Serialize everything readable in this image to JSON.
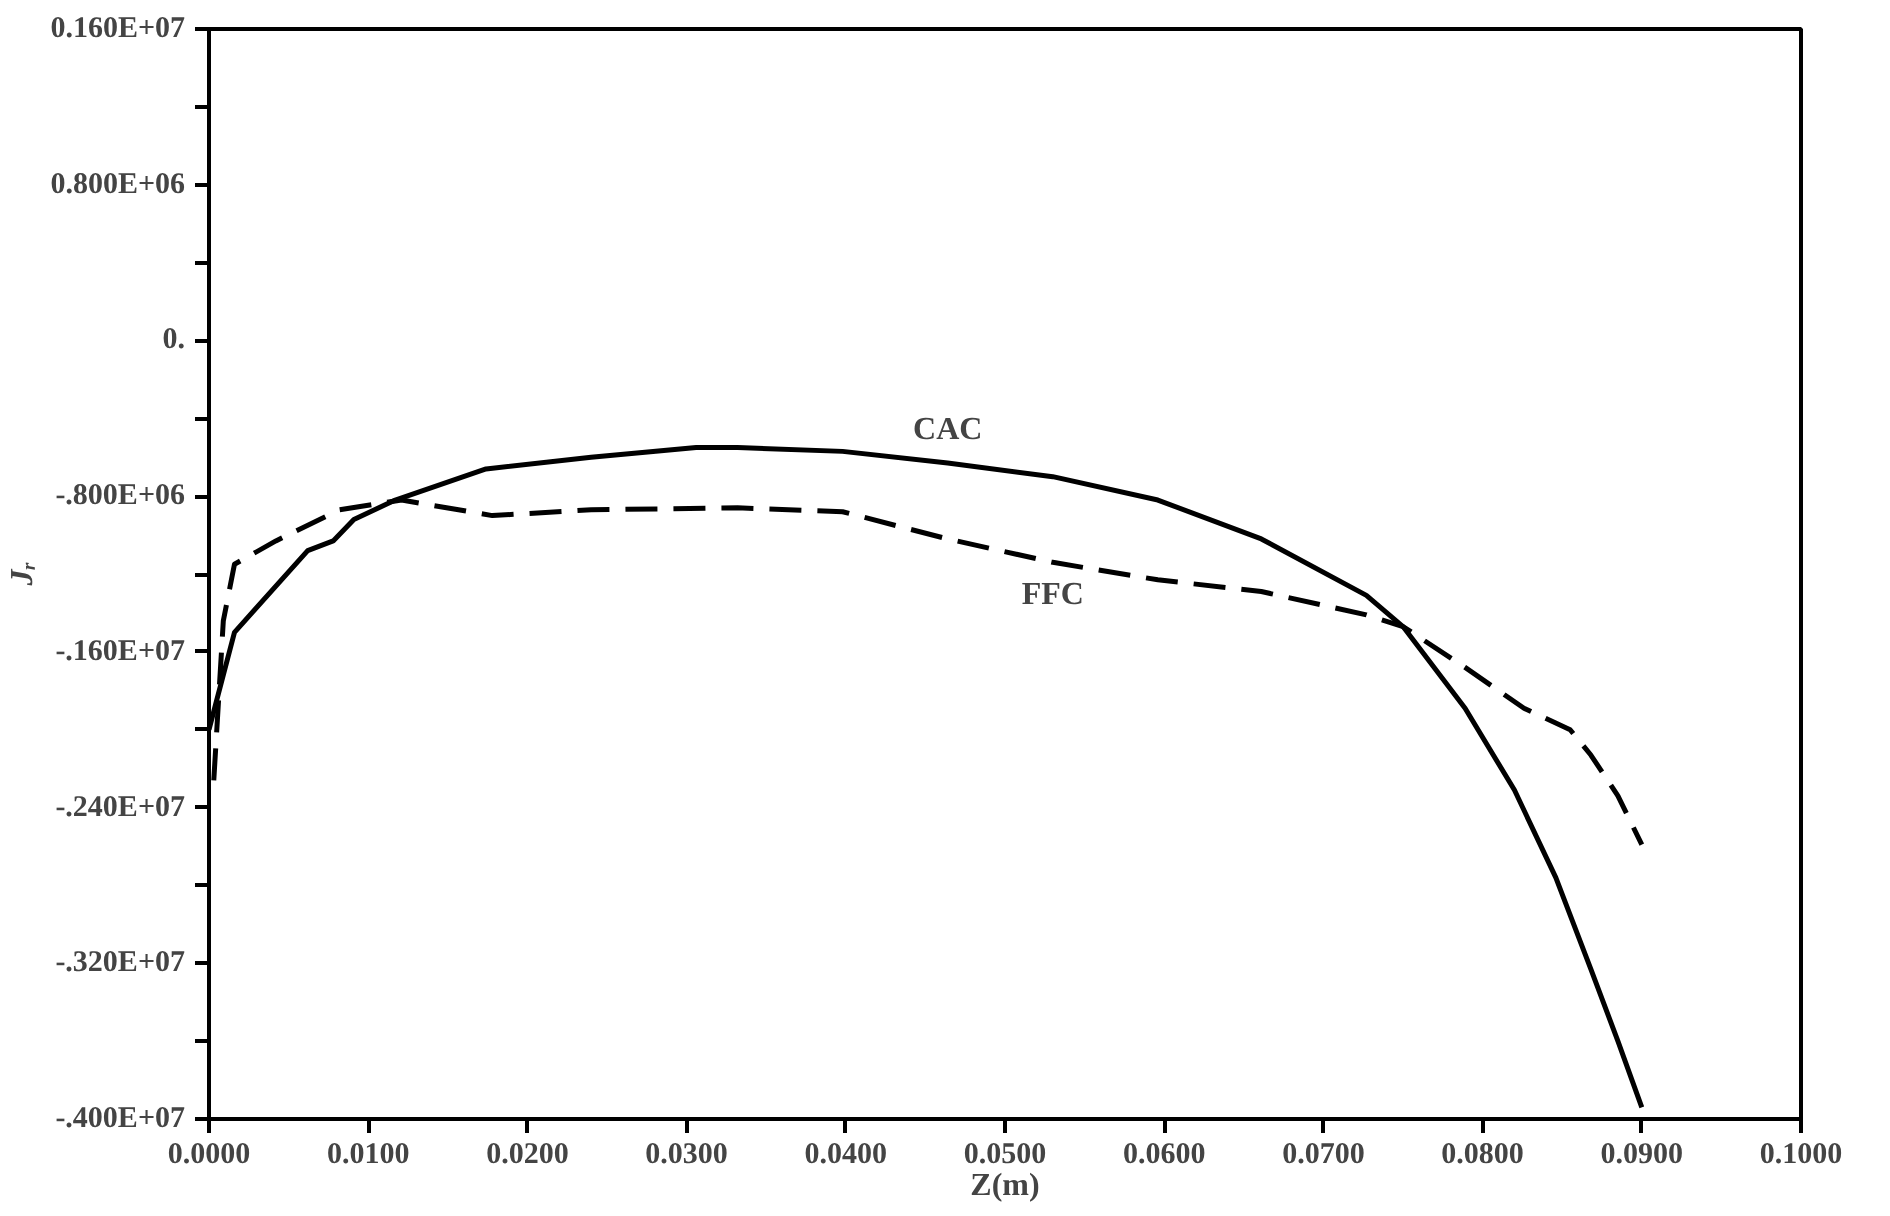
{
  "chart_data": {
    "type": "line",
    "xlabel": "Z(m)",
    "ylabel": "Jᵣ",
    "xlim": [
      0,
      0.1
    ],
    "ylim": [
      -4000000,
      1600000
    ],
    "xticks": [
      {
        "value": 0,
        "label": "0.0000"
      },
      {
        "value": 0.01,
        "label": "0.0100"
      },
      {
        "value": 0.02,
        "label": "0.0200"
      },
      {
        "value": 0.03,
        "label": "0.0300"
      },
      {
        "value": 0.04,
        "label": "0.0400"
      },
      {
        "value": 0.05,
        "label": "0.0500"
      },
      {
        "value": 0.06,
        "label": "0.0600"
      },
      {
        "value": 0.07,
        "label": "0.0700"
      },
      {
        "value": 0.08,
        "label": "0.0800"
      },
      {
        "value": 0.09,
        "label": "0.0900"
      },
      {
        "value": 0.1,
        "label": "0.1000"
      }
    ],
    "yticks": [
      {
        "value": -4000000,
        "label": "-.400E+07"
      },
      {
        "value": -3600000,
        "label": null
      },
      {
        "value": -3200000,
        "label": "-.320E+07"
      },
      {
        "value": -2800000,
        "label": null
      },
      {
        "value": -2400000,
        "label": "-.240E+07"
      },
      {
        "value": -2000000,
        "label": null
      },
      {
        "value": -1600000,
        "label": "-.160E+07"
      },
      {
        "value": -1200000,
        "label": null
      },
      {
        "value": -800000,
        "label": "-.800E+06"
      },
      {
        "value": -400000,
        "label": null
      },
      {
        "value": 0,
        "label": "0."
      },
      {
        "value": 400000,
        "label": null
      },
      {
        "value": 800000,
        "label": "0.800E+06"
      },
      {
        "value": 1200000,
        "label": null
      },
      {
        "value": 1600000,
        "label": "0.160E+07"
      }
    ],
    "grid": false,
    "series": [
      {
        "name": "CAC",
        "color": "#000000",
        "line_style": "solid",
        "x": [
          0,
          0.0016,
          0.0062,
          0.0078,
          0.0091,
          0.0117,
          0.0174,
          0.024,
          0.0306,
          0.0332,
          0.0398,
          0.0464,
          0.053,
          0.0596,
          0.0661,
          0.0727,
          0.075,
          0.0789,
          0.082,
          0.0846,
          0.0868,
          0.0885,
          0.09
        ],
        "values": [
          -2000000,
          -1500000,
          -1080000,
          -1030000,
          -920000,
          -820000,
          -660000,
          -600000,
          -550000,
          -550000,
          -570000,
          -630000,
          -700000,
          -820000,
          -1020000,
          -1310000,
          -1470000,
          -1890000,
          -2310000,
          -2760000,
          -3230000,
          -3600000,
          -3940000
        ]
      },
      {
        "name": "FFC",
        "color": "#000000",
        "line_style": "dashed",
        "x": [
          0.0003,
          0.0009,
          0.0016,
          0.0042,
          0.0082,
          0.0121,
          0.0178,
          0.024,
          0.0332,
          0.0398,
          0.0464,
          0.053,
          0.0596,
          0.0661,
          0.0727,
          0.075,
          0.0789,
          0.0826,
          0.0855,
          0.0868,
          0.0885,
          0.09
        ],
        "values": [
          -2260000,
          -1440000,
          -1150000,
          -1030000,
          -870000,
          -820000,
          -900000,
          -870000,
          -860000,
          -880000,
          -1020000,
          -1140000,
          -1230000,
          -1290000,
          -1410000,
          -1470000,
          -1680000,
          -1890000,
          -2000000,
          -2130000,
          -2340000,
          -2590000
        ]
      }
    ]
  }
}
